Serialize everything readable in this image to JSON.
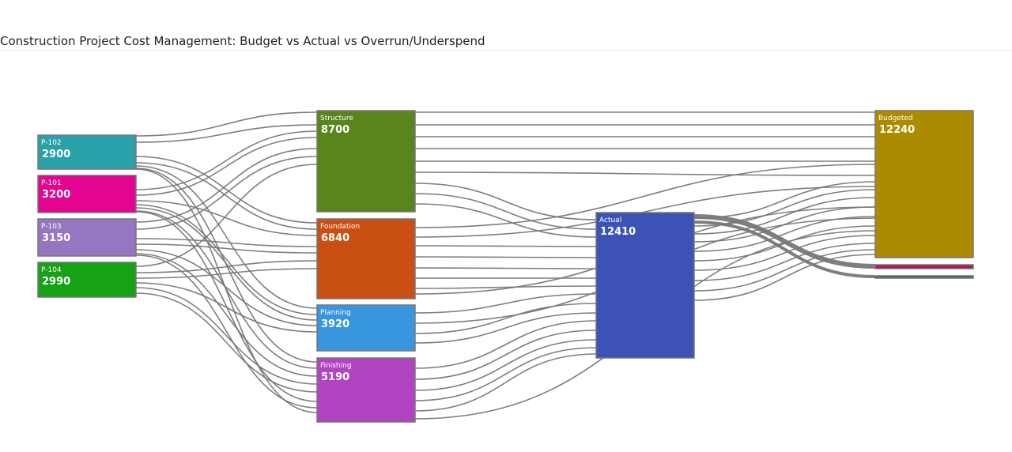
{
  "title": "Construction Project Cost Management: Budget vs Actual vs Overrun/Underspend",
  "nodes": {
    "p102": {
      "name": "P-102",
      "value": "2900",
      "color": "#2aa0a8"
    },
    "p101": {
      "name": "P-101",
      "value": "3200",
      "color": "#e3048f"
    },
    "p103": {
      "name": "P-103",
      "value": "3150",
      "color": "#9577c1"
    },
    "p104": {
      "name": "P-104",
      "value": "2990",
      "color": "#17a115"
    },
    "structure": {
      "name": "Structure",
      "value": "8700",
      "color": "#5a841c"
    },
    "foundation": {
      "name": "Foundation",
      "value": "6840",
      "color": "#c94f12"
    },
    "planning": {
      "name": "Planning",
      "value": "3920",
      "color": "#3896de"
    },
    "finishing": {
      "name": "Finishing",
      "value": "5190",
      "color": "#b145c1"
    },
    "actual": {
      "name": "Actual",
      "value": "12410",
      "color": "#3c52b6"
    },
    "budgeted": {
      "name": "Budgeted",
      "value": "12240",
      "color": "#ad8b01"
    },
    "overrun": {
      "name": "",
      "value": "",
      "color": "#b0165e"
    },
    "underspend": {
      "name": "",
      "value": "",
      "color": "#2a6b68"
    }
  },
  "link_color": "#777777"
}
